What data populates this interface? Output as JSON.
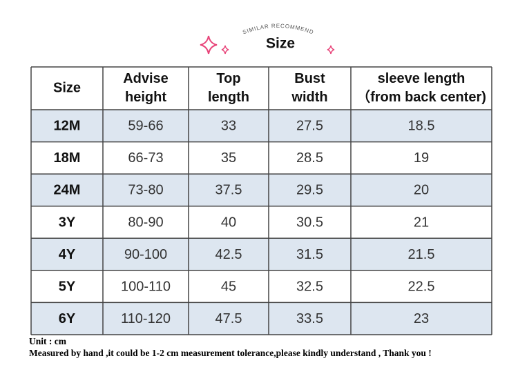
{
  "header": {
    "arc_text": "SIMILAR RECOMMEND",
    "title": "Size"
  },
  "table": {
    "columns": [
      [
        "Size"
      ],
      [
        "Advise",
        "height"
      ],
      [
        "Top",
        "length"
      ],
      [
        "Bust",
        "width"
      ],
      [
        "sleeve length",
        "（from back center)"
      ]
    ],
    "rows": [
      [
        "12M",
        "59-66",
        "33",
        "27.5",
        "18.5"
      ],
      [
        "18M",
        "66-73",
        "35",
        "28.5",
        "19"
      ],
      [
        "24M",
        "73-80",
        "37.5",
        "29.5",
        "20"
      ],
      [
        "3Y",
        "80-90",
        "40",
        "30.5",
        "21"
      ],
      [
        "4Y",
        "90-100",
        "42.5",
        "31.5",
        "21.5"
      ],
      [
        "5Y",
        "100-110",
        "45",
        "32.5",
        "22.5"
      ],
      [
        "6Y",
        "110-120",
        "47.5",
        "33.5",
        "23"
      ]
    ]
  },
  "notes": [
    "Unit : cm",
    "Measured by hand ,it could be 1-2 cm measurement tolerance,please kindly understand , Thank you !"
  ]
}
